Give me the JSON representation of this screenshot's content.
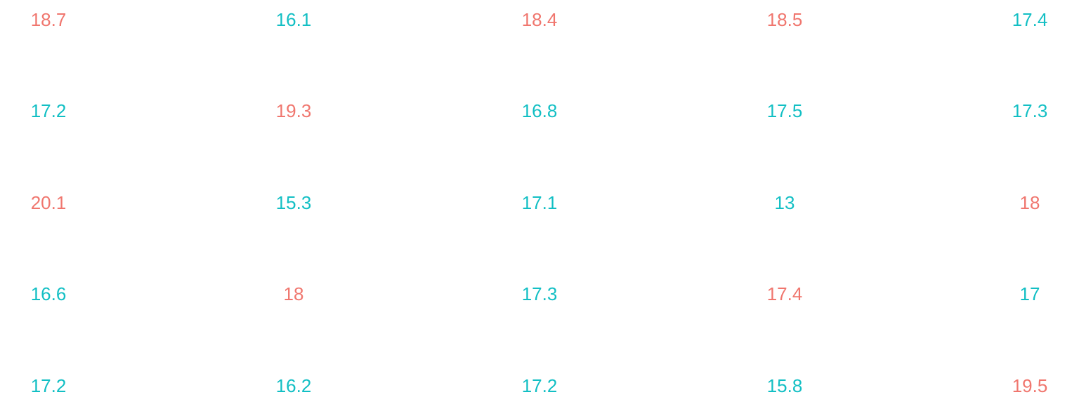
{
  "colors": {
    "high": "#F0766E",
    "low": "#12BFC4",
    "background": "#FFFFFF"
  },
  "chart_data": {
    "type": "table",
    "rows": 5,
    "columns": 5,
    "cells": [
      [
        {
          "value": "18.7",
          "group": "high"
        },
        {
          "value": "16.1",
          "group": "low"
        },
        {
          "value": "18.4",
          "group": "high"
        },
        {
          "value": "18.5",
          "group": "high"
        },
        {
          "value": "17.4",
          "group": "low"
        }
      ],
      [
        {
          "value": "17.2",
          "group": "low"
        },
        {
          "value": "19.3",
          "group": "high"
        },
        {
          "value": "16.8",
          "group": "low"
        },
        {
          "value": "17.5",
          "group": "low"
        },
        {
          "value": "17.3",
          "group": "low"
        }
      ],
      [
        {
          "value": "20.1",
          "group": "high"
        },
        {
          "value": "15.3",
          "group": "low"
        },
        {
          "value": "17.1",
          "group": "low"
        },
        {
          "value": "13",
          "group": "low"
        },
        {
          "value": "18",
          "group": "high"
        }
      ],
      [
        {
          "value": "16.6",
          "group": "low"
        },
        {
          "value": "18",
          "group": "high"
        },
        {
          "value": "17.3",
          "group": "low"
        },
        {
          "value": "17.4",
          "group": "high"
        },
        {
          "value": "17",
          "group": "low"
        }
      ],
      [
        {
          "value": "17.2",
          "group": "low"
        },
        {
          "value": "16.2",
          "group": "low"
        },
        {
          "value": "17.2",
          "group": "low"
        },
        {
          "value": "15.8",
          "group": "low"
        },
        {
          "value": "19.5",
          "group": "high"
        }
      ]
    ]
  }
}
